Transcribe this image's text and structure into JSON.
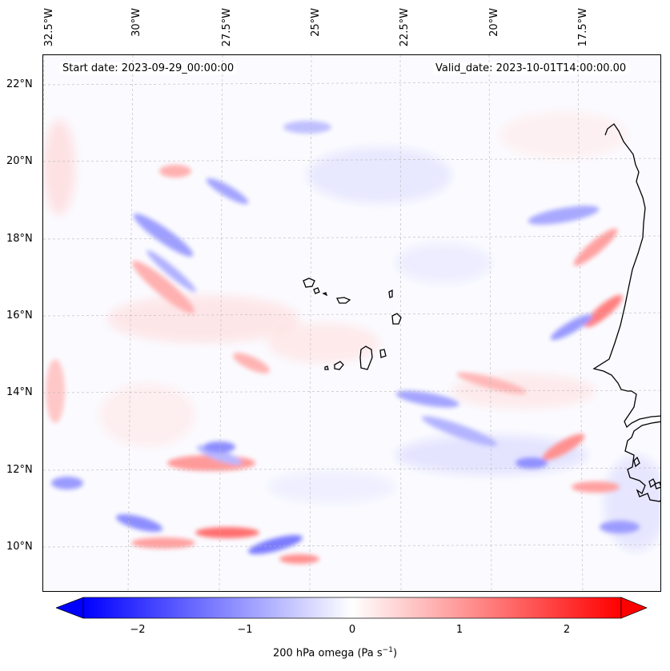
{
  "map": {
    "start_date": "Start date: 2023-09-29_00:00:00",
    "valid_date": "Valid_date: 2023-10-01T14:00:00.00",
    "lon_labels": [
      "32.5°W",
      "30°W",
      "27.5°W",
      "25°W",
      "22.5°W",
      "20°W",
      "17.5°W"
    ],
    "lat_labels": [
      "22°N",
      "20°N",
      "18°N",
      "16°N",
      "14°N",
      "12°N",
      "10°N"
    ],
    "extent": {
      "lon_min": -32.8,
      "lon_max": -15.6,
      "lat_min": 8.9,
      "lat_max": 22.8
    },
    "coastline_color": "#000000",
    "gridlines": true
  },
  "colorbar": {
    "title": "200 hPa omega (Pa s",
    "title_sup": "−1",
    "title_end": ")",
    "ticks": [
      "−2",
      "−1",
      "0",
      "1",
      "2"
    ],
    "range": [
      -2.7,
      2.7
    ],
    "colormap": "bwr",
    "low_color": "#0000ff",
    "mid_color": "#ffffff",
    "high_color": "#ff0000"
  }
}
